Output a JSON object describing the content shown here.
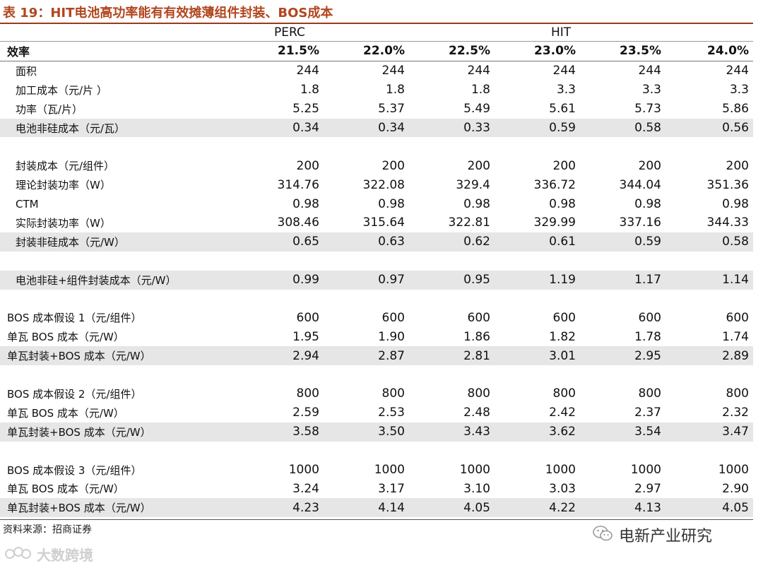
{
  "title": "表 19：HIT电池高功率能有有效摊薄组件封装、BOS成本",
  "groups": {
    "left": "PERC",
    "right": "HIT"
  },
  "header": {
    "label": "效率",
    "values": [
      "21.5%",
      "22.0%",
      "22.5%",
      "23.0%",
      "23.5%",
      "24.0%"
    ]
  },
  "rows": [
    {
      "label": "面积",
      "values": [
        "244",
        "244",
        "244",
        "244",
        "244",
        "244"
      ]
    },
    {
      "label": "加工成本（元/片 ）",
      "values": [
        "1.8",
        "1.8",
        "1.8",
        "3.3",
        "3.3",
        "3.3"
      ]
    },
    {
      "label": "功率（瓦/片）",
      "values": [
        "5.25",
        "5.37",
        "5.49",
        "5.61",
        "5.73",
        "5.86"
      ]
    },
    {
      "label": "电池非硅成本（元/瓦）",
      "values": [
        "0.34",
        "0.34",
        "0.33",
        "0.59",
        "0.58",
        "0.56"
      ]
    },
    {
      "label": "封装成本（元/组件）",
      "values": [
        "200",
        "200",
        "200",
        "200",
        "200",
        "200"
      ]
    },
    {
      "label": "理论封装功率（W）",
      "values": [
        "314.76",
        "322.08",
        "329.4",
        "336.72",
        "344.04",
        "351.36"
      ]
    },
    {
      "label": "CTM",
      "values": [
        "0.98",
        "0.98",
        "0.98",
        "0.98",
        "0.98",
        "0.98"
      ]
    },
    {
      "label": "实际封装功率（W）",
      "values": [
        "308.46",
        "315.64",
        "322.81",
        "329.99",
        "337.16",
        "344.33"
      ]
    },
    {
      "label": "封装非硅成本（元/W）",
      "values": [
        "0.65",
        "0.63",
        "0.62",
        "0.61",
        "0.59",
        "0.58"
      ]
    },
    {
      "label": "电池非硅+组件封装成本（元/W）",
      "values": [
        "0.99",
        "0.97",
        "0.95",
        "1.19",
        "1.17",
        "1.14"
      ]
    },
    {
      "label": "BOS 成本假设 1（元/组件）",
      "values": [
        "600",
        "600",
        "600",
        "600",
        "600",
        "600"
      ]
    },
    {
      "label": "单瓦 BOS 成本（元/W）",
      "values": [
        "1.95",
        "1.90",
        "1.86",
        "1.82",
        "1.78",
        "1.74"
      ]
    },
    {
      "label": "单瓦封装+BOS 成本（元/W）",
      "values": [
        "2.94",
        "2.87",
        "2.81",
        "3.01",
        "2.95",
        "2.89"
      ]
    },
    {
      "label": "BOS 成本假设 2（元/组件）",
      "values": [
        "800",
        "800",
        "800",
        "800",
        "800",
        "800"
      ]
    },
    {
      "label": "单瓦 BOS 成本（元/W）",
      "values": [
        "2.59",
        "2.53",
        "2.48",
        "2.42",
        "2.37",
        "2.32"
      ]
    },
    {
      "label": "单瓦封装+BOS 成本（元/W）",
      "values": [
        "3.58",
        "3.50",
        "3.43",
        "3.62",
        "3.54",
        "3.47"
      ]
    },
    {
      "label": "BOS 成本假设 3（元/组件）",
      "values": [
        "1000",
        "1000",
        "1000",
        "1000",
        "1000",
        "1000"
      ]
    },
    {
      "label": "单瓦 BOS 成本（元/W）",
      "values": [
        "3.24",
        "3.17",
        "3.10",
        "3.03",
        "2.97",
        "2.90"
      ]
    },
    {
      "label": "单瓦封装+BOS 成本（元/W）",
      "values": [
        "4.23",
        "4.14",
        "4.05",
        "4.22",
        "4.13",
        "4.05"
      ]
    }
  ],
  "source": "资料来源：招商证券",
  "wechat_account": "电新产业研究",
  "watermark": "大数跨境",
  "colors": {
    "title": "#b2461f",
    "shade": "#e6e6e6"
  }
}
